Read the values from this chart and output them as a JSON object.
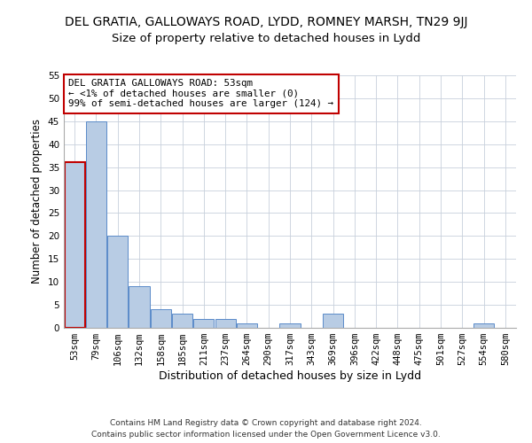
{
  "title1": "DEL GRATIA, GALLOWAYS ROAD, LYDD, ROMNEY MARSH, TN29 9JJ",
  "title2": "Size of property relative to detached houses in Lydd",
  "xlabel": "Distribution of detached houses by size in Lydd",
  "ylabel": "Number of detached properties",
  "categories": [
    "53sqm",
    "79sqm",
    "106sqm",
    "132sqm",
    "158sqm",
    "185sqm",
    "211sqm",
    "237sqm",
    "264sqm",
    "290sqm",
    "317sqm",
    "343sqm",
    "369sqm",
    "396sqm",
    "422sqm",
    "448sqm",
    "475sqm",
    "501sqm",
    "527sqm",
    "554sqm",
    "580sqm"
  ],
  "values": [
    36,
    45,
    20,
    9,
    4,
    3,
    2,
    2,
    1,
    0,
    1,
    0,
    3,
    0,
    0,
    0,
    0,
    0,
    0,
    1,
    0
  ],
  "bar_color": "#b8cce4",
  "bar_edge_color": "#5b8bc9",
  "highlight_color": "#c00000",
  "highlight_index": 0,
  "ylim": [
    0,
    55
  ],
  "yticks": [
    0,
    5,
    10,
    15,
    20,
    25,
    30,
    35,
    40,
    45,
    50,
    55
  ],
  "annotation_box_text": "DEL GRATIA GALLOWAYS ROAD: 53sqm\n← <1% of detached houses are smaller (0)\n99% of semi-detached houses are larger (124) →",
  "annotation_box_color": "#c00000",
  "footer1": "Contains HM Land Registry data © Crown copyright and database right 2024.",
  "footer2": "Contains public sector information licensed under the Open Government Licence v3.0.",
  "bg_color": "#ffffff",
  "grid_color": "#c8d0dc",
  "title1_fontsize": 10,
  "title2_fontsize": 9.5,
  "tick_fontsize": 7.5,
  "xlabel_fontsize": 9,
  "ylabel_fontsize": 8.5,
  "ann_fontsize": 7.8,
  "footer_fontsize": 6.5
}
